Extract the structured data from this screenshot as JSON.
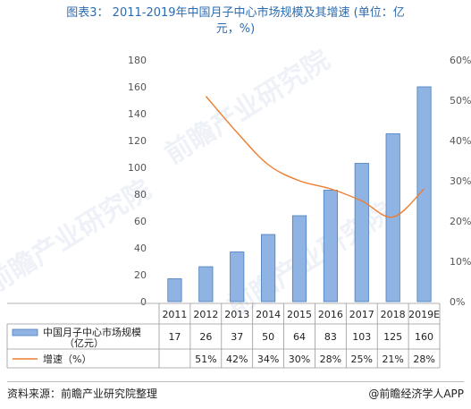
{
  "title_line1": "图表3： 2011-2019年中国月子中心市场规模及其增速 (单位：亿",
  "title_line2": "元，%)",
  "footer": {
    "source": "资料来源：前瞻产业研究院整理",
    "brand": "@前瞻经济学人APP"
  },
  "watermark": "前瞻产业研究院",
  "chart_data": {
    "type": "bar",
    "categories": [
      "2011",
      "2012",
      "2013",
      "2014",
      "2015",
      "2016",
      "2017",
      "2018",
      "2019E"
    ],
    "series": [
      {
        "name": "中国月子中心市场规模（亿元）",
        "type": "bar",
        "axis": "left",
        "values": [
          17,
          26,
          37,
          50,
          64,
          83,
          103,
          125,
          160
        ],
        "labels": [
          "17",
          "26",
          "37",
          "50",
          "64",
          "83",
          "103",
          "125",
          "160"
        ]
      },
      {
        "name": "增速（%）",
        "type": "line",
        "axis": "right",
        "values": [
          null,
          51,
          42,
          34,
          30,
          28,
          25,
          21,
          28
        ],
        "labels": [
          "",
          "51%",
          "42%",
          "34%",
          "30%",
          "28%",
          "25%",
          "21%",
          "28%"
        ]
      }
    ],
    "y_left": {
      "ylim": [
        0,
        180
      ],
      "ticks": [
        "0",
        "20",
        "40",
        "60",
        "80",
        "100",
        "120",
        "140",
        "160",
        "180"
      ]
    },
    "y_right": {
      "ylim": [
        0,
        60
      ],
      "ticks": [
        "0%",
        "10%",
        "20%",
        "30%",
        "40%",
        "50%",
        "60%"
      ]
    },
    "legend": "data-table below chart",
    "colors": {
      "bar": "#8fb4e3",
      "bar_edge": "#4a7ebb",
      "line": "#ed7d31",
      "title": "#2b6cb0"
    }
  }
}
